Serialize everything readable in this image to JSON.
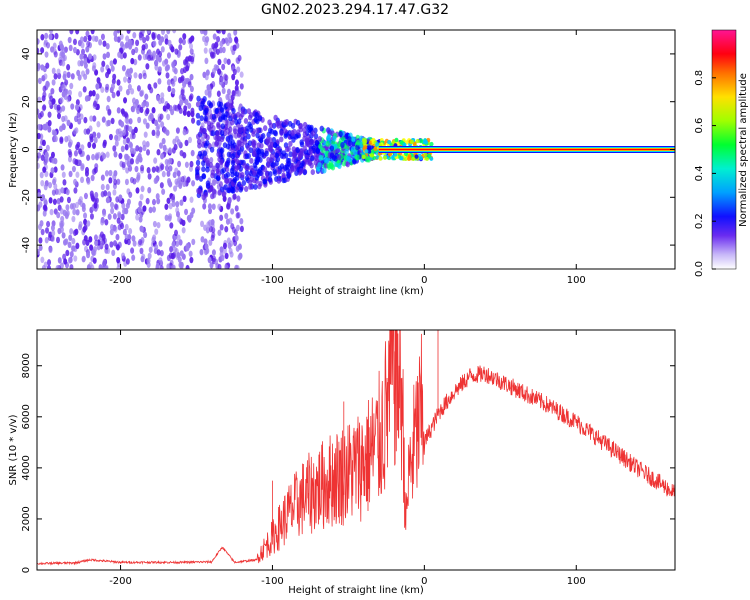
{
  "title": "GN02.2023.294.17.47.G32",
  "chart_data": [
    {
      "type": "heatmap",
      "xlabel": "Height of straight line (km)",
      "ylabel": "Frequency (Hz)",
      "xlim": [
        -255,
        165
      ],
      "ylim": [
        -50,
        50
      ],
      "xticks": [
        -200,
        -100,
        0,
        100
      ],
      "yticks": [
        -40,
        -20,
        0,
        20,
        40
      ],
      "grid": false,
      "colorbar": {
        "label": "Normalized spectral amplitude",
        "range": [
          0,
          1
        ],
        "ticks": [
          0.0,
          0.2,
          0.4,
          0.6,
          0.8
        ],
        "colormap": [
          "#ffffff",
          "#9b7cf0",
          "#5a1ee8",
          "#0000ff",
          "#00c8ff",
          "#00ff66",
          "#aaff00",
          "#ffff00",
          "#ff8800",
          "#ff0000",
          "#ff1493"
        ]
      },
      "regions": [
        {
          "x_from": -255,
          "x_to": -120,
          "freq_spread_hz": 50,
          "amplitude": 0.15
        },
        {
          "x_from": -150,
          "x_to": -40,
          "freq_spread_hz": 20,
          "amplitude": 0.3
        },
        {
          "x_from": -40,
          "x_to": 5,
          "freq_spread_hz": 5,
          "amplitude": 0.6
        },
        {
          "x_from": -30,
          "x_to": 165,
          "freq_spread_hz": 1,
          "amplitude": 1.0
        }
      ]
    },
    {
      "type": "line",
      "xlabel": "Height of straight line (km)",
      "ylabel": "SNR (10 * v/v)",
      "xlim": [
        -255,
        165
      ],
      "ylim": [
        0,
        9400
      ],
      "xticks": [
        -200,
        -100,
        0,
        100
      ],
      "yticks": [
        0,
        2000,
        4000,
        6000,
        8000
      ],
      "grid": false,
      "series": [
        {
          "color": "#ee3333",
          "x": [
            -255,
            -230,
            -220,
            -200,
            -160,
            -140,
            -133,
            -125,
            -110,
            -100,
            -90,
            -80,
            -70,
            -60,
            -50,
            -40,
            -30,
            -25,
            -20,
            -15,
            -12,
            -10,
            -5,
            0,
            10,
            20,
            30,
            40,
            50,
            60,
            80,
            100,
            120,
            140,
            165
          ],
          "y": [
            250,
            280,
            400,
            300,
            300,
            320,
            900,
            300,
            400,
            1000,
            1700,
            2200,
            2500,
            2800,
            3000,
            3300,
            3900,
            4800,
            6500,
            5500,
            1500,
            3000,
            4200,
            5000,
            6200,
            7000,
            7600,
            7700,
            7400,
            7100,
            6500,
            5800,
            4900,
            4000,
            3000
          ]
        }
      ],
      "spikes": [
        {
          "x": -20,
          "y": 9400
        },
        {
          "x": 9,
          "y": 9400
        },
        {
          "x": -53,
          "y": 6600
        },
        {
          "x": -100,
          "y": 3500
        }
      ]
    }
  ]
}
